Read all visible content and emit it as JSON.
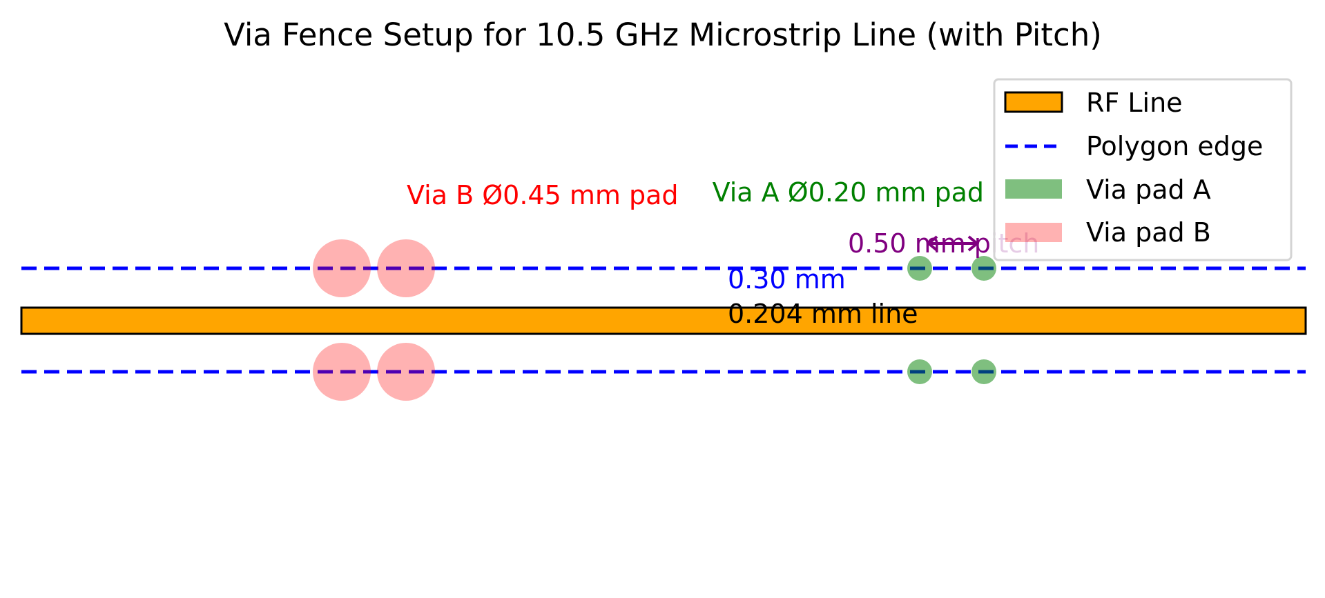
{
  "title": "Via Fence Setup for 10.5 GHz Microstrip Line (with Pitch)",
  "annotations": {
    "via_b": "Via B Ø0.45 mm pad",
    "via_a": "Via A Ø0.20 mm pad",
    "pitch": "0.50 mm pitch",
    "gap": "0.30 mm",
    "line": "0.204 mm line"
  },
  "legend": {
    "placement": "upper-right",
    "items": [
      {
        "label": "RF Line",
        "kind": "patch"
      },
      {
        "label": "Polygon edge",
        "kind": "dashed-line"
      },
      {
        "label": "Via pad A",
        "kind": "patch"
      },
      {
        "label": "Via pad B",
        "kind": "patch"
      }
    ]
  },
  "colors": {
    "rf_line": "#FFA500",
    "polygon_edge": "#0000FF",
    "via_pad_a": "#008000",
    "via_pad_b": "#FF6666",
    "via_b_text": "#FF0000",
    "via_a_text": "#008000",
    "pitch": "#800080",
    "gap_text": "#0000FF"
  }
}
